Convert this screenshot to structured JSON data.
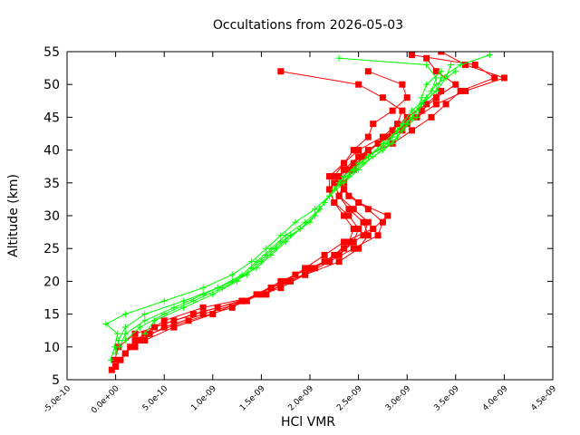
{
  "chart_data": {
    "type": "line",
    "title": "Occultations from 2026-05-03",
    "xlabel": "HCl VMR",
    "ylabel": "Altitude (km)",
    "xlim": [
      -5e-10,
      4.5e-09
    ],
    "ylim": [
      5,
      55
    ],
    "x_ticks": [
      -5e-10,
      0,
      5e-10,
      1e-09,
      1.5e-09,
      2e-09,
      2.5e-09,
      3e-09,
      3.5e-09,
      4e-09,
      4.5e-09
    ],
    "x_tick_labels": [
      "-5.0e-10",
      "0.0e+00",
      "5.0e-10",
      "1.0e-09",
      "1.5e-09",
      "2.0e-09",
      "2.5e-09",
      "3.0e-09",
      "3.5e-09",
      "4.0e-09",
      "4.5e-09"
    ],
    "y_ticks": [
      5,
      10,
      15,
      20,
      25,
      30,
      35,
      40,
      45,
      50,
      55
    ],
    "y_tick_labels": [
      "5",
      "10",
      "15",
      "20",
      "25",
      "30",
      "35",
      "40",
      "45",
      "50",
      "55"
    ],
    "grid": false,
    "legend": "none",
    "series_colors": {
      "red": "#ff0000",
      "green": "#00ff00"
    },
    "series": [
      {
        "color": "#ff0000",
        "marker": "square",
        "profiles": [
          {
            "y": [
              6.5,
              8,
              10,
              12,
              14,
              16,
              18,
              20,
              22,
              24,
              26,
              28,
              30,
              32,
              34,
              36,
              38,
              40,
              42,
              44,
              46,
              48,
              50,
              52,
              54
            ],
            "x": [
              -4e-11,
              5e-11,
              1.5e-10,
              3.5e-10,
              7.5e-10,
              1.2e-09,
              1.45e-09,
              1.7e-09,
              2e-09,
              2.3e-09,
              2.45e-09,
              2.5e-09,
              2.4e-09,
              2.25e-09,
              2.2e-09,
              2.3e-09,
              2.45e-09,
              2.6e-09,
              2.8e-09,
              3e-09,
              3.15e-09,
              3.3e-09,
              3.5e-09,
              3.3e-09,
              3.2e-09
            ]
          },
          {
            "y": [
              7,
              9,
              11,
              13,
              15,
              17,
              19,
              21,
              23,
              25,
              27,
              29,
              31,
              33,
              35,
              37,
              39,
              41,
              43,
              45,
              47,
              49,
              51,
              53,
              55
            ],
            "x": [
              0,
              1e-10,
              2.5e-10,
              5e-10,
              9e-10,
              1.35e-09,
              1.6e-09,
              1.85e-09,
              2.15e-09,
              2.35e-09,
              2.55e-09,
              2.6e-09,
              2.45e-09,
              2.3e-09,
              2.25e-09,
              2.35e-09,
              2.5e-09,
              2.7e-09,
              2.95e-09,
              3.1e-09,
              3.3e-09,
              3.6e-09,
              4e-09,
              3.6e-09,
              3.35e-09
            ]
          },
          {
            "y": [
              8,
              10,
              12,
              14,
              16,
              18,
              20,
              22,
              24,
              26,
              28,
              30,
              32,
              34,
              36,
              38,
              40,
              42,
              44,
              46,
              48,
              50,
              52
            ],
            "x": [
              -1e-11,
              3e-11,
              2e-10,
              6e-10,
              1.05e-09,
              1.5e-09,
              1.8e-09,
              2.05e-09,
              2.25e-09,
              2.4e-09,
              2.45e-09,
              2.35e-09,
              2.25e-09,
              2.2e-09,
              2.2e-09,
              2.35e-09,
              2.5e-09,
              2.75e-09,
              2.9e-09,
              2.95e-09,
              2.75e-09,
              2.5e-09,
              1.7e-09
            ]
          },
          {
            "y": [
              9,
              11,
              13,
              15,
              17,
              19,
              21,
              23,
              25,
              27,
              29,
              31,
              33,
              35,
              37,
              39,
              41,
              43,
              45,
              47,
              49,
              51,
              53,
              54.5
            ],
            "x": [
              1e-10,
              2e-10,
              4e-10,
              8e-10,
              1.3e-09,
              1.7e-09,
              1.95e-09,
              2.2e-09,
              2.45e-09,
              2.7e-09,
              2.75e-09,
              2.6e-09,
              2.4e-09,
              2.3e-09,
              2.4e-09,
              2.55e-09,
              2.85e-09,
              3.05e-09,
              3.25e-09,
              3.4e-09,
              3.55e-09,
              3.9e-09,
              3.7e-09,
              3.05e-09
            ]
          },
          {
            "y": [
              10,
              12,
              14,
              16,
              18,
              20,
              22,
              24,
              26,
              28,
              30,
              32,
              34,
              36,
              38,
              40,
              42,
              44,
              46,
              48,
              50,
              52
            ],
            "x": [
              2e-10,
              3e-10,
              5e-10,
              9e-10,
              1.55e-09,
              1.75e-09,
              1.95e-09,
              2.15e-09,
              2.35e-09,
              2.65e-09,
              2.8e-09,
              2.5e-09,
              2.35e-09,
              2.25e-09,
              2.35e-09,
              2.45e-09,
              2.6e-09,
              2.65e-09,
              2.85e-09,
              3e-09,
              2.95e-09,
              2.6e-09
            ]
          },
          {
            "y": [
              11,
              13,
              15,
              17,
              19,
              21,
              23,
              25,
              27,
              29,
              31,
              33,
              35,
              37,
              39,
              41,
              43,
              45,
              47,
              49
            ],
            "x": [
              3e-10,
              6e-10,
              1e-09,
              1.3e-09,
              1.6e-09,
              1.95e-09,
              2.3e-09,
              2.5e-09,
              2.6e-09,
              2.55e-09,
              2.4e-09,
              2.3e-09,
              2.35e-09,
              2.45e-09,
              2.55e-09,
              2.7e-09,
              2.85e-09,
              3e-09,
              3.2e-09,
              3.35e-09
            ]
          }
        ]
      },
      {
        "color": "#00ff00",
        "marker": "plus",
        "profiles": [
          {
            "y": [
              8,
              10,
              12,
              13.5,
              15,
              17,
              19,
              21,
              23,
              25,
              27,
              29,
              31,
              33,
              35,
              37,
              39,
              41,
              43,
              45,
              47,
              49,
              51,
              53,
              54.5
            ],
            "x": [
              -5e-11,
              -1e-11,
              2e-11,
              -1e-10,
              1e-10,
              5e-10,
              9e-10,
              1.2e-09,
              1.4e-09,
              1.55e-09,
              1.7e-09,
              1.85e-09,
              2.05e-09,
              2.2e-09,
              2.3e-09,
              2.45e-09,
              2.6e-09,
              2.75e-09,
              2.9e-09,
              3.05e-09,
              3.15e-09,
              3.3e-09,
              3.35e-09,
              3.55e-09,
              3.85e-09
            ]
          },
          {
            "y": [
              9,
              11,
              13,
              15,
              17,
              19,
              21,
              23,
              25,
              27,
              29,
              31,
              33,
              35,
              37,
              39,
              41,
              43,
              45,
              47,
              49,
              51,
              53,
              54
            ],
            "x": [
              0,
              3e-11,
              1e-10,
              3e-10,
              7e-10,
              1.05e-09,
              1.3e-09,
              1.45e-09,
              1.6e-09,
              1.75e-09,
              1.95e-09,
              2.1e-09,
              2.2e-09,
              2.35e-09,
              2.5e-09,
              2.65e-09,
              2.85e-09,
              2.95e-09,
              3.1e-09,
              3.15e-09,
              3.25e-09,
              3.3e-09,
              3.2e-09,
              2.3e-09
            ]
          },
          {
            "y": [
              10,
              12,
              14,
              16,
              18,
              20,
              22,
              24,
              26,
              28,
              30,
              32,
              34,
              36,
              38,
              40,
              42,
              44,
              46,
              48,
              50,
              52
            ],
            "x": [
              4e-11,
              1e-10,
              3e-10,
              6e-10,
              9e-10,
              1.2e-09,
              1.45e-09,
              1.6e-09,
              1.75e-09,
              1.9e-09,
              2.05e-09,
              2.15e-09,
              2.25e-09,
              2.4e-09,
              2.55e-09,
              2.75e-09,
              2.9e-09,
              3e-09,
              3.1e-09,
              3.15e-09,
              3.2e-09,
              3.35e-09
            ]
          },
          {
            "y": [
              11,
              13,
              15,
              17,
              19,
              21,
              23,
              25,
              27,
              29,
              31,
              33,
              35,
              37,
              39,
              41,
              43,
              45,
              47,
              49,
              51,
              53
            ],
            "x": [
              1e-10,
              2.5e-10,
              5e-10,
              8e-10,
              1.1e-09,
              1.35e-09,
              1.5e-09,
              1.65e-09,
              1.8e-09,
              2e-09,
              2.1e-09,
              2.2e-09,
              2.3e-09,
              2.45e-09,
              2.6e-09,
              2.8e-09,
              2.9e-09,
              3.05e-09,
              3.15e-09,
              3.3e-09,
              3.4e-09,
              3.45e-09
            ]
          },
          {
            "y": [
              12,
              14,
              16,
              18,
              20,
              22,
              24,
              26,
              28,
              30,
              32,
              34,
              36,
              38,
              40,
              42,
              44,
              46,
              48,
              50,
              52
            ],
            "x": [
              3e-10,
              4e-10,
              7e-10,
              1e-09,
              1.25e-09,
              1.4e-09,
              1.55e-09,
              1.7e-09,
              1.9e-09,
              2.05e-09,
              2.15e-09,
              2.25e-09,
              2.35e-09,
              2.5e-09,
              2.7e-09,
              2.85e-09,
              2.95e-09,
              3.05e-09,
              3.2e-09,
              3.3e-09,
              3.5e-09
            ]
          }
        ]
      }
    ]
  }
}
